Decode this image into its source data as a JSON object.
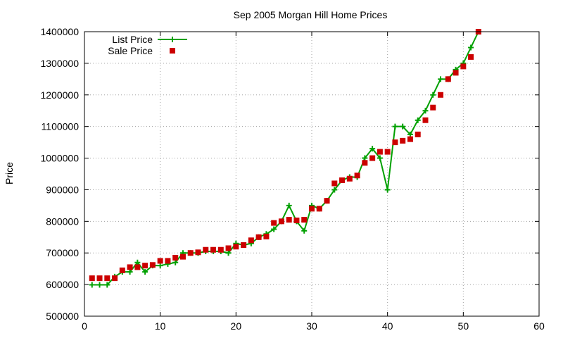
{
  "chart_data": {
    "type": "line",
    "title": "Sep 2005 Morgan Hill Home Prices",
    "xlabel": "",
    "ylabel": "Price",
    "xlim": [
      0,
      60
    ],
    "ylim": [
      500000,
      1400000
    ],
    "xticks": [
      0,
      10,
      20,
      30,
      40,
      50,
      60
    ],
    "yticks": [
      500000,
      600000,
      700000,
      800000,
      900000,
      1000000,
      1100000,
      1200000,
      1300000,
      1400000
    ],
    "grid": true,
    "legend_position": "top-left",
    "series": [
      {
        "name": "List Price",
        "style": "line-plus",
        "color": "#00a000",
        "x": [
          1,
          2,
          3,
          4,
          5,
          6,
          7,
          8,
          9,
          10,
          11,
          12,
          13,
          14,
          15,
          16,
          17,
          18,
          19,
          20,
          21,
          22,
          23,
          24,
          25,
          26,
          27,
          28,
          29,
          30,
          31,
          32,
          33,
          34,
          35,
          36,
          37,
          38,
          39,
          40,
          41,
          42,
          43,
          44,
          45,
          46,
          47,
          48,
          49,
          50,
          51,
          52
        ],
        "y": [
          599000,
          599000,
          599000,
          625000,
          640000,
          640000,
          670000,
          640000,
          660000,
          660000,
          665000,
          670000,
          700000,
          700000,
          700000,
          705000,
          705000,
          705000,
          700000,
          730000,
          725000,
          730000,
          750000,
          760000,
          775000,
          800000,
          850000,
          800000,
          770000,
          850000,
          840000,
          865000,
          900000,
          930000,
          940000,
          940000,
          1000000,
          1030000,
          1000000,
          900000,
          1100000,
          1100000,
          1075000,
          1120000,
          1150000,
          1200000,
          1250000,
          1250000,
          1280000,
          1300000,
          1350000,
          1400000
        ]
      },
      {
        "name": "Sale Price",
        "style": "square",
        "color": "#cc0000",
        "x": [
          1,
          2,
          3,
          4,
          5,
          6,
          7,
          8,
          9,
          10,
          11,
          12,
          13,
          14,
          15,
          16,
          17,
          18,
          19,
          20,
          21,
          22,
          23,
          24,
          25,
          26,
          27,
          28,
          29,
          30,
          31,
          32,
          33,
          34,
          35,
          36,
          37,
          38,
          39,
          40,
          41,
          42,
          43,
          44,
          45,
          46,
          47,
          48,
          49,
          50,
          51,
          52
        ],
        "y": [
          620000,
          620000,
          620000,
          620000,
          645000,
          655000,
          655000,
          660000,
          662000,
          675000,
          675000,
          685000,
          688000,
          700000,
          702000,
          710000,
          710000,
          710000,
          715000,
          720000,
          725000,
          740000,
          750000,
          752000,
          795000,
          800000,
          805000,
          803000,
          805000,
          840000,
          840000,
          865000,
          920000,
          930000,
          935000,
          945000,
          985000,
          1000000,
          1020000,
          1020000,
          1050000,
          1055000,
          1060000,
          1075000,
          1120000,
          1160000,
          1200000,
          1250000,
          1270000,
          1290000,
          1320000,
          1400000
        ]
      }
    ]
  }
}
